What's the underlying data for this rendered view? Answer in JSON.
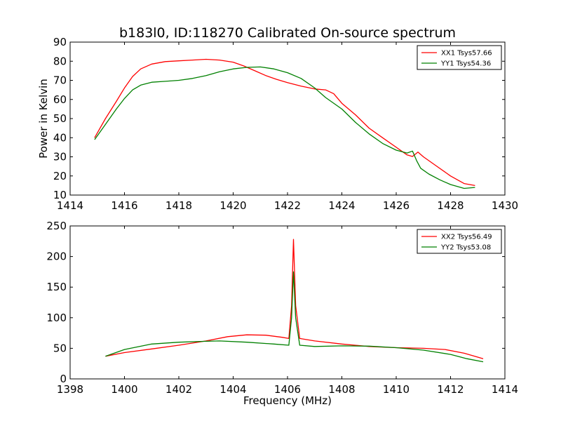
{
  "title": "b183l0, ID:118270 Calibrated On-source spectrum",
  "chart_data": [
    {
      "type": "line",
      "xlabel": "",
      "ylabel": "Power in Kelvin",
      "xlim": [
        1414,
        1430
      ],
      "ylim": [
        10,
        90
      ],
      "xticks": [
        1414,
        1416,
        1418,
        1420,
        1422,
        1424,
        1426,
        1428,
        1430
      ],
      "yticks": [
        10,
        20,
        30,
        40,
        50,
        60,
        70,
        80,
        90
      ],
      "legend_position": "top-right",
      "series": [
        {
          "name": "XX1 Tsys57.66",
          "color": "#ff0000",
          "x": [
            1414.9,
            1415.3,
            1415.7,
            1416.0,
            1416.3,
            1416.6,
            1417.0,
            1417.5,
            1418.0,
            1418.5,
            1419.0,
            1419.5,
            1420.0,
            1420.4,
            1420.8,
            1421.2,
            1421.6,
            1422.0,
            1422.5,
            1423.0,
            1423.4,
            1423.7,
            1424.0,
            1424.5,
            1425.0,
            1425.5,
            1426.0,
            1426.4,
            1426.6,
            1426.8,
            1427.0,
            1427.5,
            1428.0,
            1428.5,
            1428.9
          ],
          "y": [
            40,
            50,
            59,
            66,
            72,
            76,
            78.5,
            79.8,
            80.2,
            80.6,
            81,
            80.6,
            79.5,
            77.5,
            75,
            72.5,
            70.5,
            68.8,
            67,
            65.5,
            65,
            63,
            58,
            52,
            45,
            40,
            35,
            31,
            30.2,
            32.5,
            30,
            25,
            20,
            16,
            15
          ]
        },
        {
          "name": "YY1 Tsys54.36",
          "color": "#008000",
          "x": [
            1414.9,
            1415.3,
            1415.7,
            1416.0,
            1416.3,
            1416.6,
            1417.0,
            1417.5,
            1418.0,
            1418.5,
            1419.0,
            1419.5,
            1420.0,
            1420.5,
            1421.0,
            1421.5,
            1422.0,
            1422.5,
            1423.0,
            1423.4,
            1424.0,
            1424.5,
            1425.0,
            1425.5,
            1426.0,
            1426.4,
            1426.6,
            1426.75,
            1426.9,
            1427.2,
            1427.6,
            1428.0,
            1428.5,
            1428.9
          ],
          "y": [
            39,
            47,
            55,
            60.5,
            65,
            67.5,
            69,
            69.5,
            70,
            71,
            72.5,
            74.5,
            76,
            76.8,
            77,
            76,
            74,
            71,
            66,
            61,
            55,
            48,
            42,
            37,
            33.5,
            32,
            33,
            28,
            24,
            21,
            18,
            15.5,
            13.5,
            14
          ]
        }
      ]
    },
    {
      "type": "line",
      "xlabel": "Frequency (MHz)",
      "ylabel": "",
      "xlim": [
        1398,
        1414
      ],
      "ylim": [
        0,
        250
      ],
      "xticks": [
        1398,
        1400,
        1402,
        1404,
        1406,
        1408,
        1410,
        1412,
        1414
      ],
      "yticks": [
        0,
        50,
        100,
        150,
        200,
        250
      ],
      "legend_position": "top-right",
      "series": [
        {
          "name": "XX2 Tsys56.49",
          "color": "#ff0000",
          "x": [
            1399.3,
            1400.0,
            1401.0,
            1402.0,
            1403.0,
            1403.8,
            1404.5,
            1405.2,
            1405.8,
            1406.05,
            1406.15,
            1406.22,
            1406.3,
            1406.45,
            1407.0,
            1408.0,
            1409.0,
            1410.0,
            1411.0,
            1411.8,
            1412.5,
            1413.2
          ],
          "y": [
            37,
            43,
            49,
            55,
            62,
            69,
            72,
            71.5,
            68,
            66,
            120,
            228,
            120,
            66,
            62,
            57,
            53,
            51,
            50,
            48,
            42,
            33
          ]
        },
        {
          "name": "YY2 Tsys53.08",
          "color": "#008000",
          "x": [
            1399.3,
            1400.0,
            1401.0,
            1402.0,
            1403.0,
            1403.5,
            1404.5,
            1405.5,
            1406.05,
            1406.15,
            1406.22,
            1406.3,
            1406.45,
            1407.0,
            1408.0,
            1409.0,
            1410.0,
            1411.0,
            1412.0,
            1412.6,
            1413.2
          ],
          "y": [
            37,
            48,
            57,
            60,
            61.5,
            62,
            60,
            57,
            55,
            100,
            175,
            100,
            55,
            53,
            54,
            53.5,
            51,
            47,
            40,
            33,
            28
          ]
        }
      ]
    }
  ]
}
